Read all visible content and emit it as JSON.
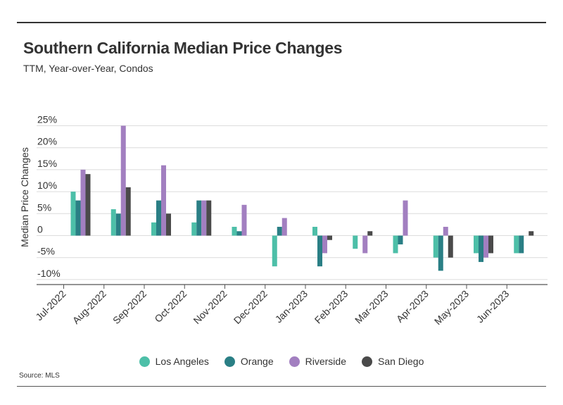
{
  "title": "Southern California Median Price Changes",
  "subtitle": "TTM, Year-over-Year, Condos",
  "source": "Source: MLS",
  "chart_data": {
    "type": "bar",
    "categories": [
      "Jul-2022",
      "Aug-2022",
      "Sep-2022",
      "Oct-2022",
      "Nov-2022",
      "Dec-2022",
      "Jan-2023",
      "Feb-2023",
      "Mar-2023",
      "Apr-2023",
      "May-2023",
      "Jun-2023"
    ],
    "ylabel": "Median Price Changes",
    "ylim": [
      -12,
      25
    ],
    "yticks": [
      -10,
      -5,
      0,
      5,
      10,
      15,
      20,
      25
    ],
    "ytick_labels": [
      "-10%",
      "-5%",
      "0",
      "5%",
      "10%",
      "15%",
      "20%",
      "25%"
    ],
    "grid": true,
    "legend_position": "bottom",
    "series": [
      {
        "name": "Los Angeles",
        "color": "#4dbfa8",
        "values": [
          10,
          6,
          3,
          3,
          2,
          -7,
          2,
          -3,
          -4,
          -5,
          -4,
          -4
        ]
      },
      {
        "name": "Orange",
        "color": "#2a7f85",
        "values": [
          8,
          5,
          8,
          8,
          1,
          2,
          -7,
          0,
          -2,
          -8,
          -6,
          -4
        ]
      },
      {
        "name": "Riverside",
        "color": "#a27fc0",
        "values": [
          15,
          25,
          16,
          8,
          7,
          4,
          -4,
          -4,
          8,
          2,
          -5,
          0
        ]
      },
      {
        "name": "San Diego",
        "color": "#4a4a4a",
        "values": [
          14,
          11,
          5,
          8,
          0,
          0,
          -1,
          1,
          0,
          -5,
          -4,
          1
        ]
      }
    ]
  }
}
